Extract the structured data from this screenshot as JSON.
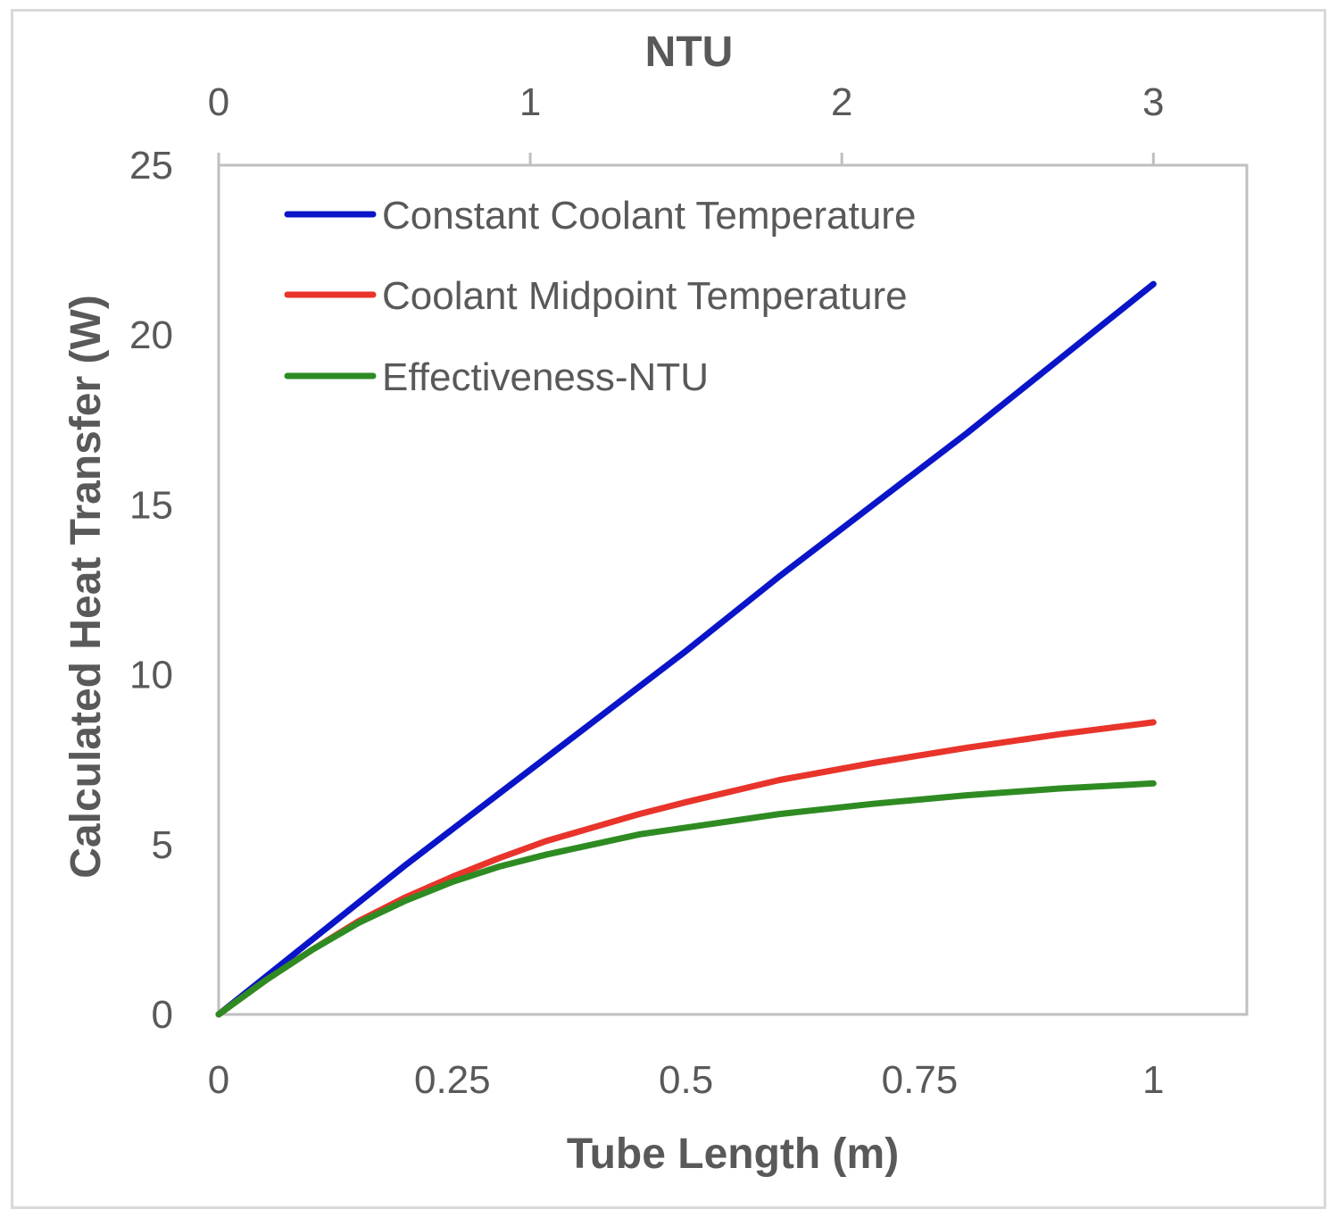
{
  "chart_data": {
    "type": "line",
    "title": "",
    "xlabel": "Tube Length (m)",
    "ylabel": "Calculated Heat Transfer (W)",
    "x2label": "NTU",
    "xlim": [
      0,
      1.1
    ],
    "ylim": [
      0,
      25
    ],
    "x2lim": [
      0,
      3.3
    ],
    "xticks": [
      "0",
      "0.25",
      "0.5",
      "0.75",
      "1"
    ],
    "yticks": [
      "0",
      "5",
      "10",
      "15",
      "20",
      "25"
    ],
    "x2ticks": [
      "0",
      "1",
      "2",
      "3"
    ],
    "grid": false,
    "legend_position": "top-left",
    "series": [
      {
        "name": "Constant Coolant Temperature",
        "color": "#0a14c8",
        "x": [
          0,
          0.1,
          0.2,
          0.3,
          0.4,
          0.5,
          0.6,
          0.7,
          0.8,
          0.9,
          1.0
        ],
        "y": [
          0,
          2.2,
          4.4,
          6.5,
          8.6,
          10.7,
          12.9,
          15.0,
          17.1,
          19.3,
          21.5
        ]
      },
      {
        "name": "Coolant Midpoint Temperature",
        "color": "#e8342b",
        "x": [
          0,
          0.05,
          0.1,
          0.15,
          0.2,
          0.25,
          0.3,
          0.35,
          0.4,
          0.45,
          0.5,
          0.6,
          0.7,
          0.8,
          0.9,
          1.0
        ],
        "y": [
          0,
          1.0,
          1.9,
          2.75,
          3.45,
          4.05,
          4.6,
          5.1,
          5.5,
          5.9,
          6.25,
          6.9,
          7.4,
          7.85,
          8.25,
          8.6
        ]
      },
      {
        "name": "Effectiveness-NTU",
        "color": "#2e8b22",
        "x": [
          0,
          0.05,
          0.1,
          0.15,
          0.2,
          0.25,
          0.3,
          0.35,
          0.4,
          0.45,
          0.5,
          0.6,
          0.7,
          0.8,
          0.9,
          1.0
        ],
        "y": [
          0,
          1.0,
          1.9,
          2.7,
          3.35,
          3.9,
          4.35,
          4.7,
          5.0,
          5.3,
          5.5,
          5.9,
          6.2,
          6.45,
          6.65,
          6.8
        ]
      }
    ]
  }
}
